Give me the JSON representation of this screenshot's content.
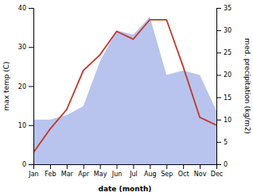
{
  "chart_data": {
    "type": "line",
    "xlabel": "date (month)",
    "ylabel": "max temp (C)",
    "y2label": "med. precipitation (kg/m2)",
    "categories": [
      "Jan",
      "Feb",
      "Mar",
      "Apr",
      "May",
      "Jun",
      "Jul",
      "Aug",
      "Sep",
      "Oct",
      "Nov",
      "Dec"
    ],
    "series": [
      {
        "type": "area",
        "axis": "y2",
        "color": "#b8c4ee",
        "values": [
          10,
          10,
          11,
          13,
          23,
          30,
          29,
          33,
          20,
          21,
          20,
          12
        ]
      },
      {
        "type": "line",
        "color": "#c0392b",
        "values": [
          3,
          9,
          14,
          24,
          28,
          34,
          32,
          37,
          37,
          25,
          12,
          10
        ]
      }
    ],
    "ylim": [
      0,
      40
    ],
    "yticks": [
      0,
      10,
      20,
      30,
      40
    ],
    "y2lim": [
      0,
      35
    ],
    "y2ticks": [
      0,
      5,
      10,
      15,
      20,
      25,
      30,
      35
    ],
    "grid": false
  }
}
